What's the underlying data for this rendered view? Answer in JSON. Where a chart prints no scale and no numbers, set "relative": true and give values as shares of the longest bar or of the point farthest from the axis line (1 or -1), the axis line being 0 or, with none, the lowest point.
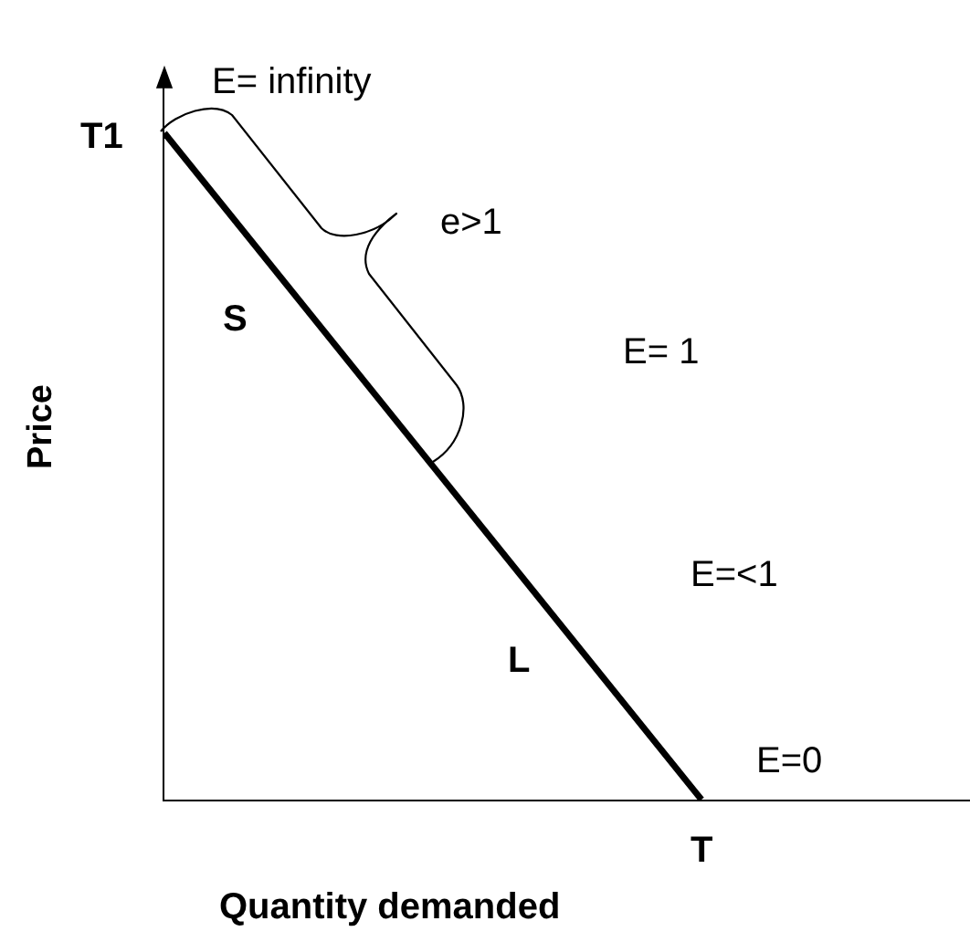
{
  "chart_data": {
    "type": "line",
    "xlabel": "Quantity demanded",
    "ylabel": "Price",
    "categories": [
      null,
      null,
      null,
      null
    ],
    "values": [
      1,
      0.5,
      0,
      null
    ],
    "color": "#000000",
    "relative": true,
    "annotations": [
      "E= infinity",
      "T1",
      "e>1",
      "S",
      "E= 1",
      "E=<1",
      "L",
      "E=0",
      "T"
    ]
  }
}
